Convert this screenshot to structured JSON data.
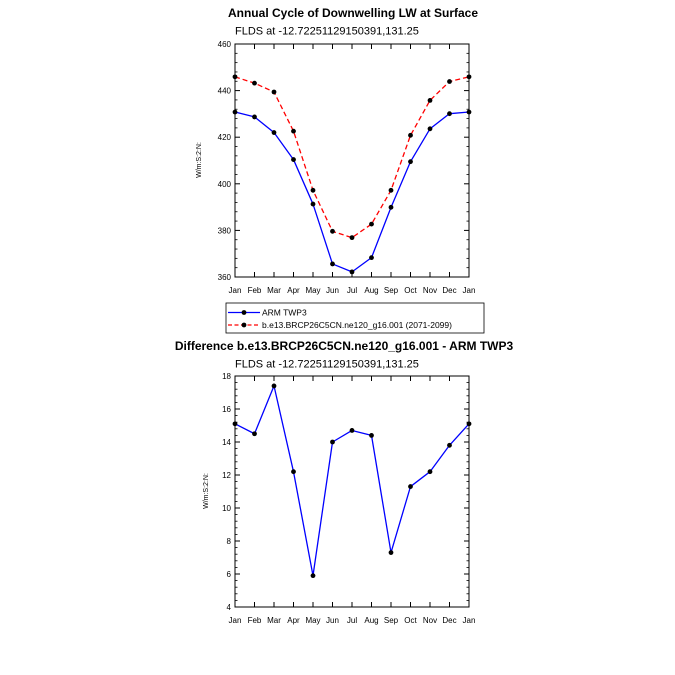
{
  "months": [
    "Jan",
    "Feb",
    "Mar",
    "Apr",
    "May",
    "Jun",
    "Jul",
    "Aug",
    "Sep",
    "Oct",
    "Nov",
    "Dec",
    "Jan"
  ],
  "chart_data": [
    {
      "type": "line",
      "title": "Annual Cycle of Downwelling LW at Surface",
      "subtitle": "FLDS at -12.72251129150391,131.25",
      "xlabel": "",
      "ylabel": "W/m:S:2:N:",
      "ylim": [
        360,
        460
      ],
      "yticks": [
        360,
        380,
        400,
        420,
        440,
        460
      ],
      "categories": [
        "Jan",
        "Feb",
        "Mar",
        "Apr",
        "May",
        "Jun",
        "Jul",
        "Aug",
        "Sep",
        "Oct",
        "Nov",
        "Dec",
        "Jan"
      ],
      "series": [
        {
          "name": "ARM TWP3",
          "color": "#0000ff",
          "dash": "solid",
          "values": [
            430.8,
            428.7,
            422.0,
            410.4,
            391.3,
            365.6,
            362.2,
            368.3,
            389.9,
            409.5,
            423.6,
            430.1,
            430.8
          ]
        },
        {
          "name": "b.e13.BRCP26C5CN.ne120_g16.001 (2071-2099)",
          "color": "#ff0000",
          "dash": "dashed",
          "values": [
            445.9,
            443.2,
            439.4,
            422.6,
            397.2,
            379.6,
            376.9,
            382.7,
            397.2,
            420.8,
            435.8,
            443.9,
            445.9
          ]
        }
      ]
    },
    {
      "type": "line",
      "title": "Difference b.e13.BRCP26C5CN.ne120_g16.001 - ARM TWP3",
      "subtitle": "FLDS at -12.72251129150391,131.25",
      "xlabel": "",
      "ylabel": "W/m:S:2:N:",
      "ylim": [
        4,
        18
      ],
      "yticks": [
        4,
        6,
        8,
        10,
        12,
        14,
        16,
        18
      ],
      "categories": [
        "Jan",
        "Feb",
        "Mar",
        "Apr",
        "May",
        "Jun",
        "Jul",
        "Aug",
        "Sep",
        "Oct",
        "Nov",
        "Dec",
        "Jan"
      ],
      "series": [
        {
          "color": "#0000ff",
          "dash": "solid",
          "values": [
            15.1,
            14.5,
            17.4,
            12.2,
            5.9,
            14.0,
            14.7,
            14.4,
            7.3,
            11.3,
            12.2,
            13.8,
            15.1
          ]
        }
      ]
    }
  ]
}
